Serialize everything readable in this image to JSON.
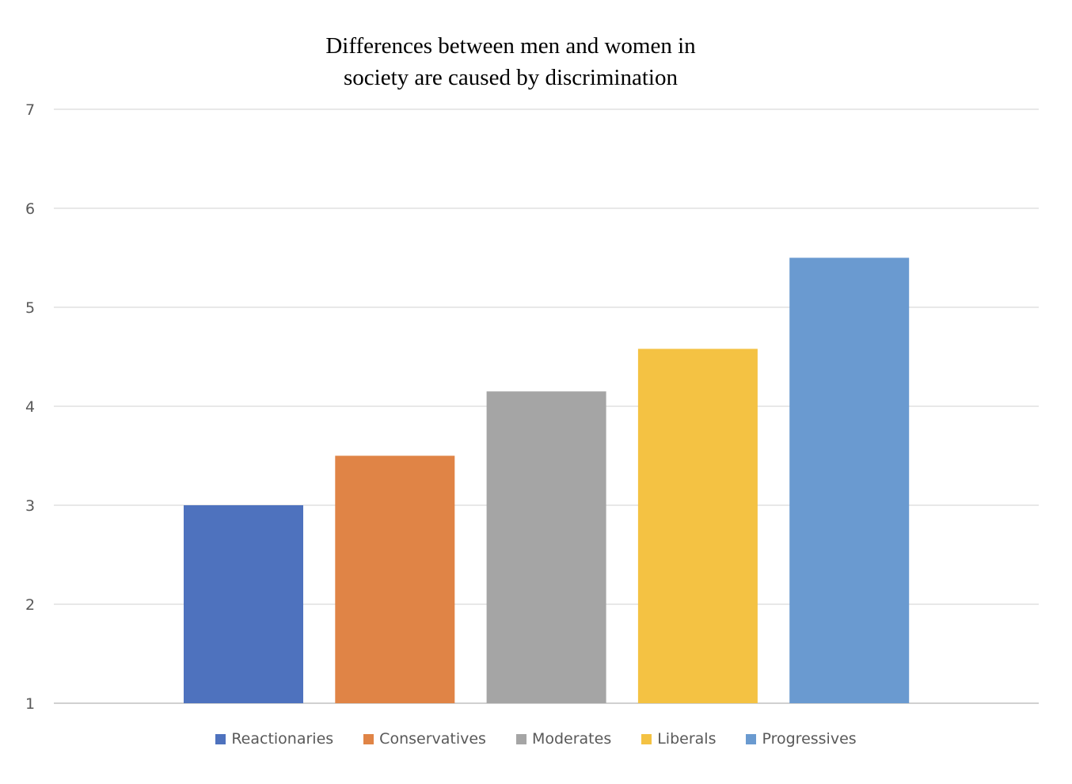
{
  "chart_data": {
    "type": "bar",
    "title": "Differences between men and women in society are caused by discrimination",
    "title_lines": [
      "Differences between men and women in",
      "society are caused by discrimination"
    ],
    "categories": [
      "Reactionaries",
      "Conservatives",
      "Moderates",
      "Liberals",
      "Progressives"
    ],
    "series": [
      {
        "name": "Reactionaries",
        "value": 3.0,
        "color": "#4e72be"
      },
      {
        "name": "Conservatives",
        "value": 3.5,
        "color": "#e08446"
      },
      {
        "name": "Moderates",
        "value": 4.15,
        "color": "#a5a5a5"
      },
      {
        "name": "Liberals",
        "value": 4.58,
        "color": "#f4c243"
      },
      {
        "name": "Progressives",
        "value": 5.5,
        "color": "#6a9ad0"
      }
    ],
    "ylim": [
      1,
      7
    ],
    "yticks": [
      "1",
      "2",
      "3",
      "4",
      "5",
      "6",
      "7"
    ],
    "grid": true,
    "legend": "bottom",
    "xlabel": "",
    "ylabel": ""
  }
}
